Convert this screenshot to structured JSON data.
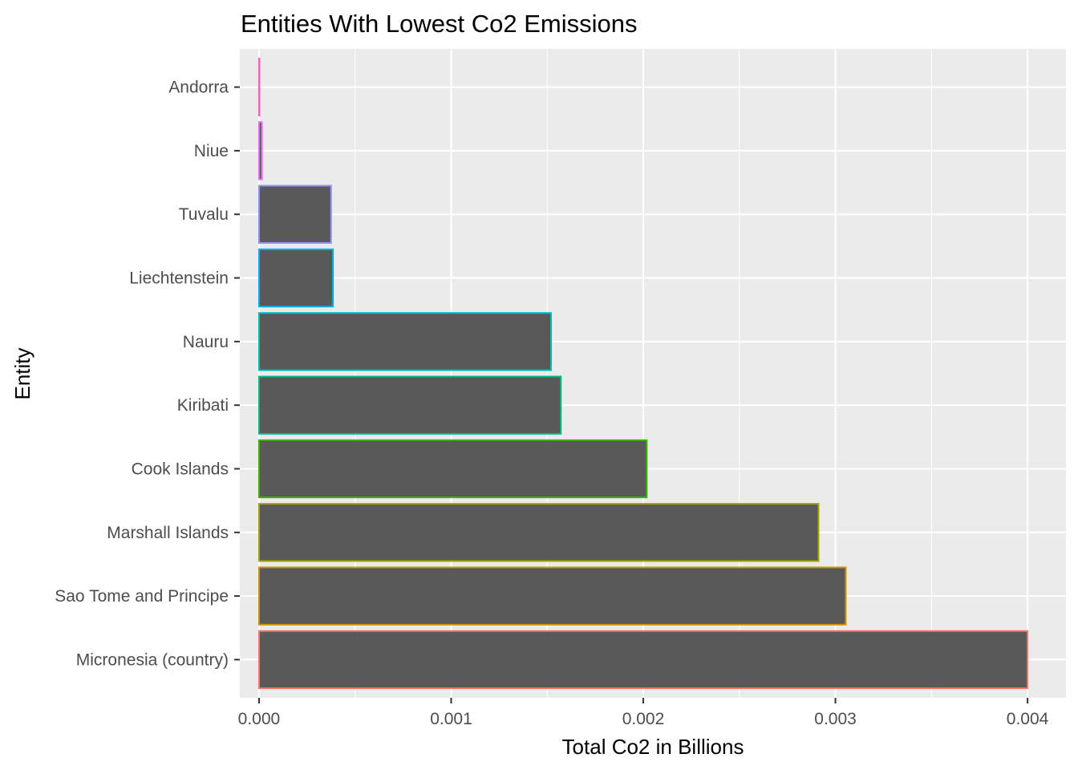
{
  "chart_data": {
    "type": "bar",
    "orientation": "horizontal",
    "title": "Entities With Lowest Co2 Emissions",
    "xlabel": "Total Co2 in Billions",
    "ylabel": "Entity",
    "xlim": [
      -0.0001,
      0.0042
    ],
    "xticks": [
      0.0,
      0.001,
      0.002,
      0.003,
      0.004
    ],
    "xtick_labels": [
      "0.000",
      "0.001",
      "0.002",
      "0.003",
      "0.004"
    ],
    "grid": true,
    "legend": "none",
    "bar_fill": "#595959",
    "panel_background": "#ebebeb",
    "categories": [
      "Micronesia (country)",
      "Sao Tome and Principe",
      "Marshall Islands",
      "Cook Islands",
      "Kiribati",
      "Nauru",
      "Liechtenstein",
      "Tuvalu",
      "Niue",
      "Andorra"
    ],
    "values": [
      0.004,
      0.003054,
      0.002912,
      0.002018,
      0.001571,
      0.00152,
      0.000385,
      0.000375,
      1.5e-05,
      5e-07
    ],
    "outline_colors": [
      "#F8766D",
      "#D89000",
      "#A3A500",
      "#39B600",
      "#00BF7D",
      "#00BFC4",
      "#00B0F6",
      "#9590FF",
      "#E76BF3",
      "#FF62BC"
    ]
  }
}
